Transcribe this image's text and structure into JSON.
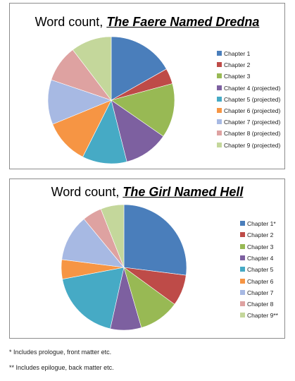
{
  "chart_data": [
    {
      "type": "pie",
      "title": "Word count, The Faere Named Dredna",
      "title_prefix": "Word count, ",
      "title_book": "The Faere Named Dredna",
      "legend_placement": "right",
      "categories": [
        "Chapter 1",
        "Chapter 2",
        "Chapter 3",
        "Chapter 4 (projected)",
        "Chapter 5 (projected)",
        "Chapter 6 (projected)",
        "Chapter 7 (projected)",
        "Chapter 8 (projected)",
        "Chapter 9 (projected)"
      ],
      "values": [
        17,
        4,
        14,
        11.5,
        11.5,
        11.5,
        11.5,
        9.5,
        10.5
      ],
      "colors": [
        "#4a7ebb",
        "#be4b48",
        "#98b954",
        "#7d60a0",
        "#46aac5",
        "#f69544",
        "#a7b9e3",
        "#dea2a1",
        "#c4d79b"
      ]
    },
    {
      "type": "pie",
      "title": "Word count, The Girl Named Hell",
      "title_prefix": "Word count, ",
      "title_book": "The Girl Named Hell",
      "legend_placement": "right",
      "categories": [
        "Chapter 1*",
        "Chapter 2",
        "Chapter 3",
        "Chapter 4",
        "Chapter 5",
        "Chapter 6",
        "Chapter 7",
        "Chapter 8",
        "Chapter 9**"
      ],
      "values": [
        27,
        8,
        10.5,
        8,
        18.5,
        5,
        12,
        5,
        6
      ],
      "colors": [
        "#4a7ebb",
        "#be4b48",
        "#98b954",
        "#7d60a0",
        "#46aac5",
        "#f69544",
        "#a7b9e3",
        "#dea2a1",
        "#c4d79b"
      ]
    }
  ],
  "footnotes": {
    "note1": "* Includes prologue, front matter etc.",
    "note2": "** Includes epilogue, back matter etc."
  }
}
